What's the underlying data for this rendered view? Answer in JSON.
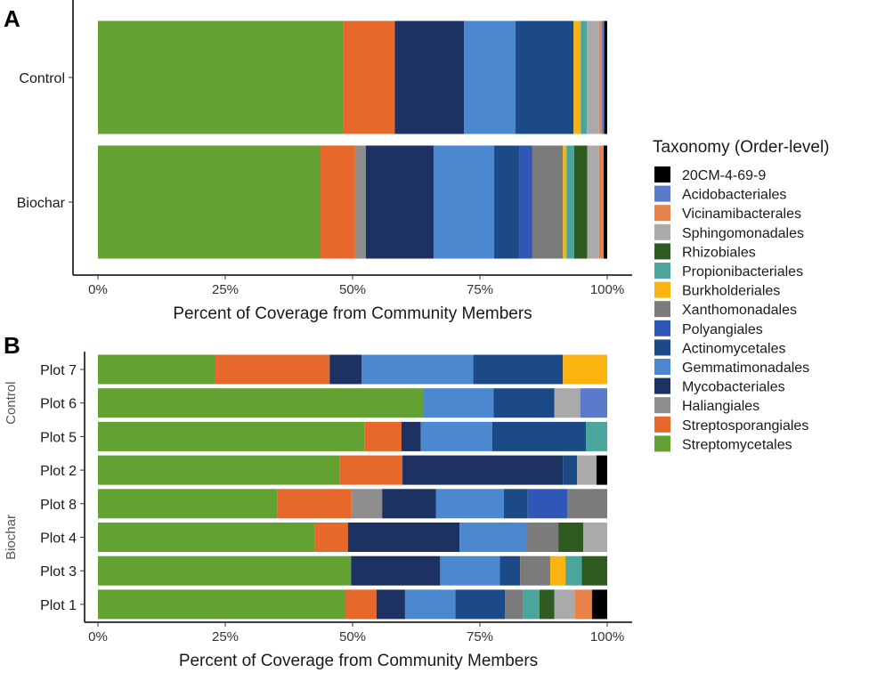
{
  "legend": {
    "title": "Taxonomy (Order-level)",
    "items": [
      {
        "key": "20CM",
        "label": "20CM-4-69-9",
        "color": "#000000"
      },
      {
        "key": "Acido",
        "label": "Acidobacteriales",
        "color": "#5b7ac9"
      },
      {
        "key": "Vicin",
        "label": "Vicinamibacterales",
        "color": "#e8844a"
      },
      {
        "key": "Sphingo",
        "label": "Sphingomonadales",
        "color": "#aaaaaa"
      },
      {
        "key": "Rhizo",
        "label": "Rhizobiales",
        "color": "#2f5a20"
      },
      {
        "key": "Propion",
        "label": "Propionibacteriales",
        "color": "#4aa59d"
      },
      {
        "key": "Burk",
        "label": "Burkholderiales",
        "color": "#fbb30f"
      },
      {
        "key": "Xantho",
        "label": "Xanthomonadales",
        "color": "#7b7b7b"
      },
      {
        "key": "Polyang",
        "label": "Polyangiales",
        "color": "#3056b8"
      },
      {
        "key": "Actino",
        "label": "Actinomycetales",
        "color": "#1c4a86"
      },
      {
        "key": "Gemma",
        "label": "Gemmatimonadales",
        "color": "#4c88d0"
      },
      {
        "key": "Myco",
        "label": "Mycobacteriales",
        "color": "#1d3162"
      },
      {
        "key": "Haliang",
        "label": "Haliangiales",
        "color": "#8e8e8e"
      },
      {
        "key": "Strepto_sp",
        "label": "Streptosporangiales",
        "color": "#e6682a"
      },
      {
        "key": "Strepto",
        "label": "Streptomycetales",
        "color": "#63a133"
      }
    ]
  },
  "chart_data": [
    {
      "panel": "A",
      "type": "bar",
      "orientation": "horizontal",
      "stacked": true,
      "xlabel": "Percent of Coverage from Community Members",
      "xlim": [
        0,
        100
      ],
      "xticks": [
        "0%",
        "25%",
        "50%",
        "75%",
        "100%"
      ],
      "categories": [
        "Control",
        "Biochar"
      ],
      "bars": [
        {
          "category": "Control",
          "segments": [
            {
              "key": "Strepto",
              "value": 48.2
            },
            {
              "key": "Strepto_sp",
              "value": 10.1
            },
            {
              "key": "Myco",
              "value": 13.6
            },
            {
              "key": "Gemma",
              "value": 10.1
            },
            {
              "key": "Actino",
              "value": 11.4
            },
            {
              "key": "Burk",
              "value": 1.4
            },
            {
              "key": "Propion",
              "value": 1.2
            },
            {
              "key": "Sphingo",
              "value": 2.4
            },
            {
              "key": "Vicin",
              "value": 0.5
            },
            {
              "key": "Acido",
              "value": 0.5
            },
            {
              "key": "20CM",
              "value": 0.6
            }
          ]
        },
        {
          "category": "Biochar",
          "segments": [
            {
              "key": "Strepto",
              "value": 43.7
            },
            {
              "key": "Strepto_sp",
              "value": 6.8
            },
            {
              "key": "Haliang",
              "value": 2.1
            },
            {
              "key": "Myco",
              "value": 13.3
            },
            {
              "key": "Gemma",
              "value": 11.9
            },
            {
              "key": "Actino",
              "value": 5.0
            },
            {
              "key": "Polyang",
              "value": 2.5
            },
            {
              "key": "Xantho",
              "value": 6.0
            },
            {
              "key": "Burk",
              "value": 0.7
            },
            {
              "key": "Propion",
              "value": 1.5
            },
            {
              "key": "Rhizo",
              "value": 2.6
            },
            {
              "key": "Sphingo",
              "value": 2.3
            },
            {
              "key": "Vicin",
              "value": 0.9
            },
            {
              "key": "20CM",
              "value": 0.7
            }
          ]
        }
      ]
    },
    {
      "panel": "B",
      "type": "bar",
      "orientation": "horizontal",
      "stacked": true,
      "xlabel": "Percent of Coverage from Community Members",
      "xlim": [
        0,
        100
      ],
      "xticks": [
        "0%",
        "25%",
        "50%",
        "75%",
        "100%"
      ],
      "groups": [
        {
          "label": "Control",
          "categories": [
            "Plot 7",
            "Plot 6",
            "Plot 5"
          ]
        },
        {
          "label": "Biochar",
          "categories": [
            "Plot 2",
            "Plot 8",
            "Plot 4",
            "Plot 3",
            "Plot 1"
          ]
        }
      ],
      "categories": [
        "Plot 7",
        "Plot 6",
        "Plot 5",
        "Plot 2",
        "Plot 8",
        "Plot 4",
        "Plot 3",
        "Plot 1"
      ],
      "bars": [
        {
          "category": "Plot 7",
          "segments": [
            {
              "key": "Strepto",
              "value": 22.9
            },
            {
              "key": "Strepto_sp",
              "value": 22.6
            },
            {
              "key": "Myco",
              "value": 6.3
            },
            {
              "key": "Gemma",
              "value": 21.9
            },
            {
              "key": "Actino",
              "value": 17.6
            },
            {
              "key": "Burk",
              "value": 8.7
            }
          ]
        },
        {
          "category": "Plot 6",
          "segments": [
            {
              "key": "Strepto",
              "value": 63.8
            },
            {
              "key": "Gemma",
              "value": 13.9
            },
            {
              "key": "Actino",
              "value": 11.9
            },
            {
              "key": "Sphingo",
              "value": 5.1
            },
            {
              "key": "Acido",
              "value": 5.3
            }
          ]
        },
        {
          "category": "Plot 5",
          "segments": [
            {
              "key": "Strepto",
              "value": 52.3
            },
            {
              "key": "Strepto_sp",
              "value": 7.3
            },
            {
              "key": "Myco",
              "value": 3.8
            },
            {
              "key": "Gemma",
              "value": 14.0
            },
            {
              "key": "Actino",
              "value": 18.4
            },
            {
              "key": "Propion",
              "value": 4.2
            }
          ]
        },
        {
          "category": "Plot 2",
          "segments": [
            {
              "key": "Strepto",
              "value": 47.4
            },
            {
              "key": "Strepto_sp",
              "value": 12.4
            },
            {
              "key": "Myco",
              "value": 31.5
            },
            {
              "key": "Actino",
              "value": 2.8
            },
            {
              "key": "Sphingo",
              "value": 3.8
            },
            {
              "key": "20CM",
              "value": 2.1
            }
          ]
        },
        {
          "category": "Plot 8",
          "segments": [
            {
              "key": "Strepto",
              "value": 35.2
            },
            {
              "key": "Strepto_sp",
              "value": 14.6
            },
            {
              "key": "Haliang",
              "value": 6.0
            },
            {
              "key": "Myco",
              "value": 10.6
            },
            {
              "key": "Gemma",
              "value": 13.3
            },
            {
              "key": "Actino",
              "value": 4.7
            },
            {
              "key": "Polyang",
              "value": 7.8
            },
            {
              "key": "Xantho",
              "value": 7.8
            }
          ]
        },
        {
          "category": "Plot 4",
          "segments": [
            {
              "key": "Strepto",
              "value": 42.5
            },
            {
              "key": "Strepto_sp",
              "value": 6.6
            },
            {
              "key": "Myco",
              "value": 21.9
            },
            {
              "key": "Gemma",
              "value": 13.1
            },
            {
              "key": "Xantho",
              "value": 6.3
            },
            {
              "key": "Rhizo",
              "value": 4.9
            },
            {
              "key": "Sphingo",
              "value": 4.7
            }
          ]
        },
        {
          "category": "Plot 3",
          "segments": [
            {
              "key": "Strepto",
              "value": 49.7
            },
            {
              "key": "Myco",
              "value": 17.5
            },
            {
              "key": "Gemma",
              "value": 11.7
            },
            {
              "key": "Actino",
              "value": 4.0
            },
            {
              "key": "Xantho",
              "value": 5.9
            },
            {
              "key": "Burk",
              "value": 3.0
            },
            {
              "key": "Propion",
              "value": 3.2
            },
            {
              "key": "Rhizo",
              "value": 5.0
            }
          ]
        },
        {
          "category": "Plot 1",
          "segments": [
            {
              "key": "Strepto",
              "value": 48.6
            },
            {
              "key": "Strepto_sp",
              "value": 6.1
            },
            {
              "key": "Myco",
              "value": 5.6
            },
            {
              "key": "Gemma",
              "value": 9.9
            },
            {
              "key": "Actino",
              "value": 9.7
            },
            {
              "key": "Xantho",
              "value": 3.6
            },
            {
              "key": "Propion",
              "value": 3.2
            },
            {
              "key": "Rhizo",
              "value": 2.9
            },
            {
              "key": "Sphingo",
              "value": 4.1
            },
            {
              "key": "Vicin",
              "value": 3.3
            },
            {
              "key": "20CM",
              "value": 3.0
            }
          ]
        }
      ]
    }
  ]
}
